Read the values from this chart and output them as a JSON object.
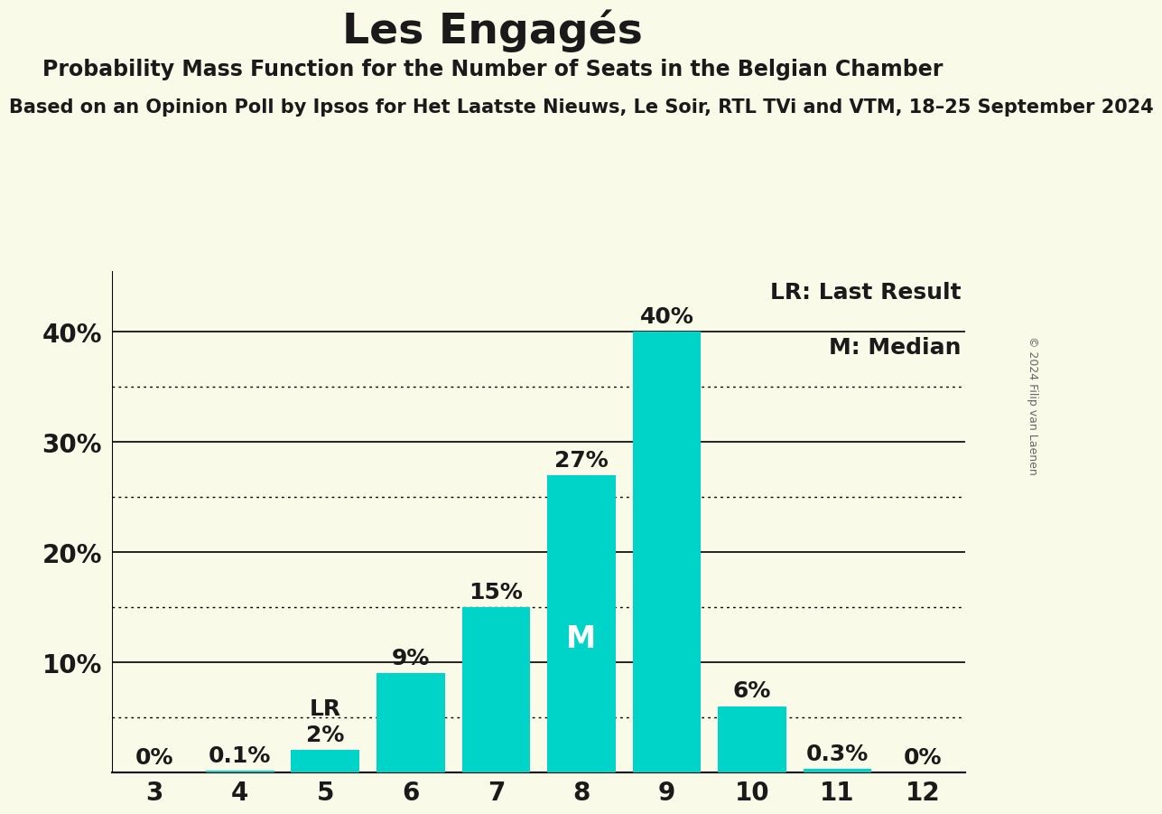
{
  "title": "Les Engagés",
  "subtitle1": "Probability Mass Function for the Number of Seats in the Belgian Chamber",
  "subtitle2": "Based on an Opinion Poll by Ipsos for Het Laatste Nieuws, Le Soir, RTL TVi and VTM, 18–25 September 2024",
  "categories": [
    3,
    4,
    5,
    6,
    7,
    8,
    9,
    10,
    11,
    12
  ],
  "values": [
    0.0,
    0.001,
    0.02,
    0.09,
    0.15,
    0.27,
    0.4,
    0.06,
    0.003,
    0.0
  ],
  "bar_color": "#00D4C8",
  "background_color": "#FAFAE8",
  "text_color": "#1a1a1a",
  "bar_labels": [
    "0%",
    "0.1%",
    "2%",
    "9%",
    "15%",
    "27%",
    "40%",
    "6%",
    "0.3%",
    "0%"
  ],
  "lr_bar": 5,
  "median_bar": 8,
  "legend_lr": "LR: Last Result",
  "legend_m": "M: Median",
  "solid_yticks": [
    0.1,
    0.2,
    0.3,
    0.4
  ],
  "dotted_yticks": [
    0.05,
    0.15,
    0.25,
    0.35
  ],
  "copyright": "© 2024 Filip van Laenen",
  "title_fontsize": 34,
  "subtitle1_fontsize": 17,
  "subtitle2_fontsize": 15,
  "tick_fontsize": 20,
  "bar_label_fontsize": 18,
  "legend_fontsize": 18,
  "ylim": [
    0,
    0.455
  ]
}
